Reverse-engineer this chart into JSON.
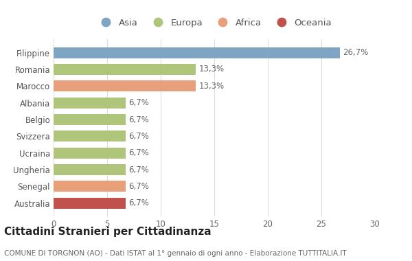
{
  "categories": [
    "Australia",
    "Senegal",
    "Ungheria",
    "Ucraina",
    "Svizzera",
    "Belgio",
    "Albania",
    "Marocco",
    "Romania",
    "Filippine"
  ],
  "values": [
    6.7,
    6.7,
    6.7,
    6.7,
    6.7,
    6.7,
    6.7,
    13.3,
    13.3,
    26.7
  ],
  "labels": [
    "6,7%",
    "6,7%",
    "6,7%",
    "6,7%",
    "6,7%",
    "6,7%",
    "6,7%",
    "13,3%",
    "13,3%",
    "26,7%"
  ],
  "colors": [
    "#c0514d",
    "#e8a07a",
    "#afc67a",
    "#afc67a",
    "#afc67a",
    "#afc67a",
    "#afc67a",
    "#e8a07a",
    "#afc67a",
    "#7ea6c4"
  ],
  "legend_labels": [
    "Asia",
    "Europa",
    "Africa",
    "Oceania"
  ],
  "legend_colors": [
    "#7ea6c4",
    "#afc67a",
    "#e8a07a",
    "#c0514d"
  ],
  "title": "Cittadini Stranieri per Cittadinanza",
  "subtitle": "COMUNE DI TORGNON (AO) - Dati ISTAT al 1° gennaio di ogni anno - Elaborazione TUTTITALIA.IT",
  "xlim": [
    0,
    30
  ],
  "xticks": [
    0,
    5,
    10,
    15,
    20,
    25,
    30
  ],
  "background_color": "#ffffff",
  "bar_height": 0.65,
  "title_fontsize": 11,
  "subtitle_fontsize": 7.5,
  "label_fontsize": 8.5,
  "tick_fontsize": 8.5,
  "legend_fontsize": 9.5
}
